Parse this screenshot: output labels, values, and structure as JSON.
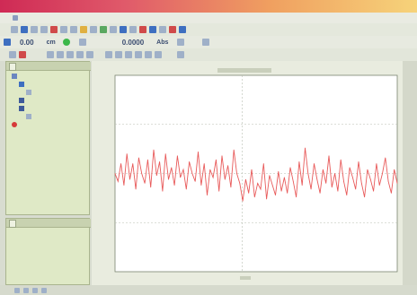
{
  "app": {
    "title": ""
  },
  "menu": [],
  "toolbar": {
    "value1": "0.00",
    "unit1": "cm",
    "value2": "0.0000",
    "unit2": "Abs"
  },
  "colors": {
    "accent": "#d63a5a",
    "panel": "#dfe9c6",
    "series": "#e85a5a"
  },
  "tree": {
    "items": [
      {
        "icon": "folder-icon"
      },
      {
        "icon": "device-icon"
      },
      {
        "icon": "sensor-icon"
      },
      {
        "icon": "module-icon"
      },
      {
        "icon": "module-icon"
      },
      {
        "icon": "sensor-icon"
      },
      {
        "icon": "record-icon"
      }
    ]
  },
  "chart_data": {
    "type": "line",
    "title": "",
    "xlabel": "",
    "ylabel": "",
    "xlim": [
      0,
      1
    ],
    "ylim": [
      0,
      1
    ],
    "grid": true,
    "y": [
      0.5,
      0.46,
      0.55,
      0.44,
      0.6,
      0.47,
      0.55,
      0.42,
      0.58,
      0.5,
      0.45,
      0.57,
      0.43,
      0.62,
      0.49,
      0.56,
      0.41,
      0.6,
      0.47,
      0.53,
      0.44,
      0.59,
      0.48,
      0.52,
      0.42,
      0.56,
      0.5,
      0.46,
      0.61,
      0.44,
      0.55,
      0.39,
      0.52,
      0.48,
      0.57,
      0.41,
      0.59,
      0.47,
      0.54,
      0.43,
      0.62,
      0.5,
      0.45,
      0.36,
      0.47,
      0.4,
      0.52,
      0.38,
      0.45,
      0.42,
      0.55,
      0.37,
      0.49,
      0.44,
      0.39,
      0.51,
      0.41,
      0.48,
      0.4,
      0.53,
      0.46,
      0.38,
      0.56,
      0.44,
      0.63,
      0.5,
      0.42,
      0.55,
      0.47,
      0.4,
      0.52,
      0.45,
      0.59,
      0.43,
      0.5,
      0.41,
      0.57,
      0.46,
      0.39,
      0.53,
      0.48,
      0.42,
      0.56,
      0.45,
      0.38,
      0.52,
      0.47,
      0.41,
      0.55,
      0.44,
      0.5,
      0.58,
      0.46,
      0.4,
      0.52,
      0.45
    ]
  }
}
